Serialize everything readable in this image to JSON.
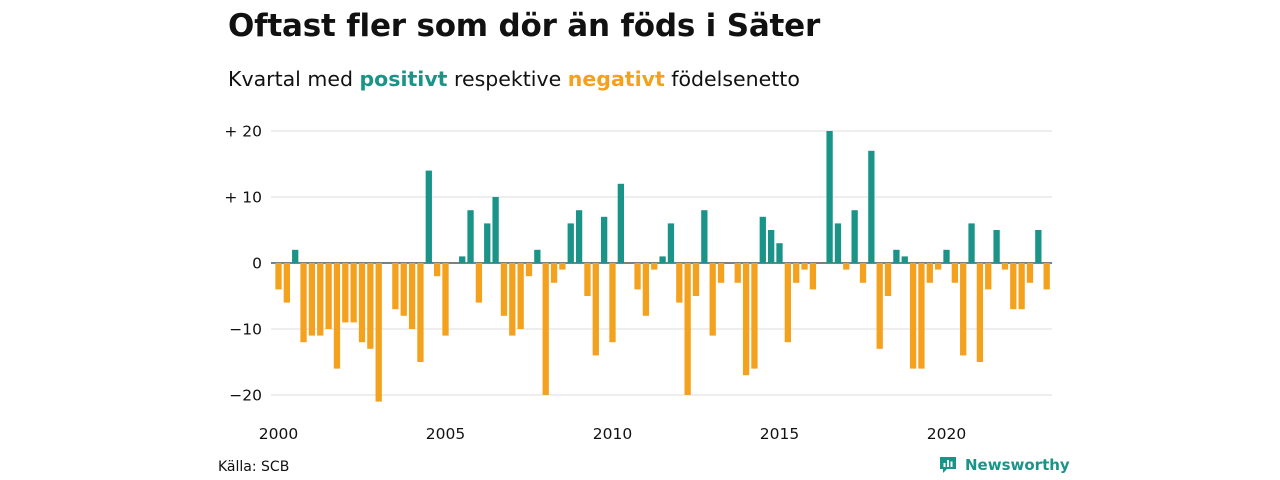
{
  "title": "Oftast fler som dör än föds i Säter",
  "subtitle": {
    "prefix": "Kvartal med ",
    "positive_word": "positivt",
    "middle": " respektive ",
    "negative_word": "negativt",
    "suffix": " födelsenetto"
  },
  "colors": {
    "positive": "#1a9488",
    "negative": "#f4a11e",
    "grid": "#dddddd",
    "text": "#111111"
  },
  "source": "Källa: SCB",
  "brand": {
    "name": "Newsworthy",
    "icon": "newsworthy-logo-icon"
  },
  "chart_data": {
    "type": "bar",
    "x_start": "2000 Q1",
    "ylim": [
      -21,
      20
    ],
    "yticks": [
      {
        "value": 20,
        "label": "+ 20"
      },
      {
        "value": 10,
        "label": "+ 10"
      },
      {
        "value": 0,
        "label": "0"
      },
      {
        "value": -10,
        "label": "−10"
      },
      {
        "value": -20,
        "label": "−20"
      }
    ],
    "xticks": [
      {
        "quarter_index": 0,
        "label": "2000"
      },
      {
        "quarter_index": 20,
        "label": "2005"
      },
      {
        "quarter_index": 40,
        "label": "2010"
      },
      {
        "quarter_index": 60,
        "label": "2015"
      },
      {
        "quarter_index": 80,
        "label": "2020"
      }
    ],
    "values": [
      -4,
      -6,
      2,
      -12,
      -11,
      -11,
      -10,
      -16,
      -9,
      -9,
      -12,
      -13,
      -21,
      0,
      -7,
      -8,
      -10,
      -15,
      14,
      -2,
      -11,
      0,
      1,
      8,
      -6,
      6,
      10,
      -8,
      -11,
      -10,
      -2,
      2,
      -20,
      -3,
      -1,
      6,
      8,
      -5,
      -14,
      7,
      -12,
      12,
      0,
      -4,
      -8,
      -1,
      1,
      6,
      -6,
      -20,
      -5,
      8,
      -11,
      -3,
      0,
      -3,
      -17,
      -16,
      7,
      5,
      3,
      -12,
      -3,
      -1,
      -4,
      0,
      20,
      6,
      -1,
      8,
      -3,
      17,
      -13,
      -5,
      2,
      1,
      -16,
      -16,
      -3,
      -1,
      2,
      -3,
      -14,
      6,
      -15,
      -4,
      5,
      -1,
      -7,
      -7,
      -3,
      5,
      -4
    ]
  }
}
